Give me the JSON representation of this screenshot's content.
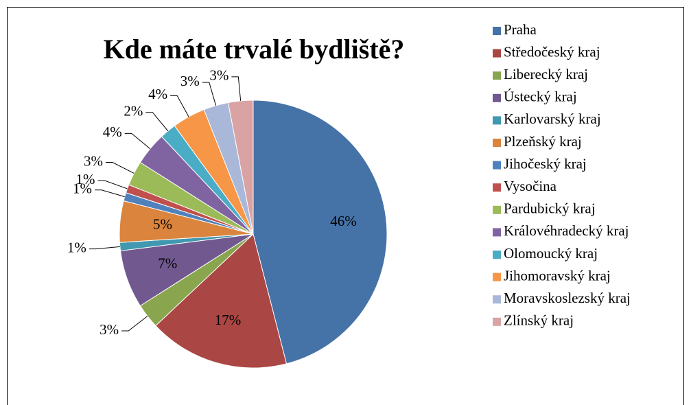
{
  "chart_data": {
    "type": "pie",
    "title": "Kde máte trvalé bydliště?",
    "categories": [
      "Praha",
      "Středočeský kraj",
      "Liberecký kraj",
      "Ústecký kraj",
      "Karlovarský kraj",
      "Plzeňský kraj",
      "Jihočeský kraj",
      "Vysočina",
      "Pardubický kraj",
      "Královéhradecký kraj",
      "Olomoucký kraj",
      "Jihomoravský kraj",
      "Moravskoslezský kraj",
      "Zlínský kraj"
    ],
    "values": [
      46,
      17,
      3,
      7,
      1,
      5,
      1,
      1,
      3,
      4,
      2,
      4,
      3,
      3
    ],
    "value_labels": [
      "46%",
      "17%",
      "3%",
      "7%",
      "1%",
      "5%",
      "1%",
      "1%",
      "3%",
      "4%",
      "2%",
      "4%",
      "3%",
      "3%"
    ],
    "colors": [
      "#4572A7",
      "#AA4643",
      "#89A54E",
      "#71588F",
      "#4198AF",
      "#DB843D",
      "#4F81BD",
      "#C0504D",
      "#9BBB59",
      "#8064A2",
      "#4BACC6",
      "#F79646",
      "#A9B8D8",
      "#D9A3A3"
    ],
    "legend": "right"
  }
}
